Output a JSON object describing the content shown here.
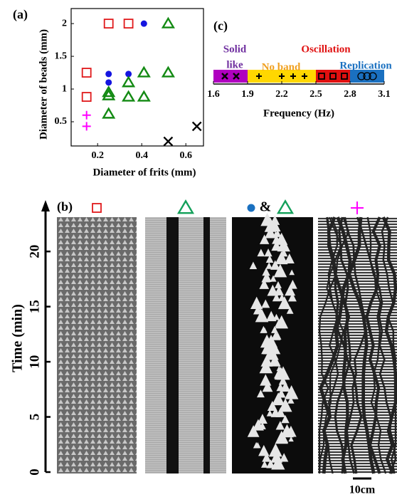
{
  "chart_data": [
    {
      "type": "scatter",
      "label": "(a)",
      "x_label": "Diameter of frits (mm)",
      "y_label": "Diameter of beads (mm)",
      "xlim": [
        0.08,
        0.68
      ],
      "ylim": [
        0.13,
        2.23
      ],
      "xticks": [
        0.2,
        0.4,
        0.6
      ],
      "yticks": [
        0.5,
        1,
        1.5,
        2
      ],
      "series": [
        {
          "marker": "square",
          "color": "#e0191b",
          "x": [
            0.25,
            0.34,
            0.15,
            0.15
          ],
          "values": [
            2,
            2,
            1.25,
            0.88
          ]
        },
        {
          "marker": "circle",
          "color": "#1515e0",
          "x": [
            0.41,
            0.25,
            0.34,
            0.25
          ],
          "values": [
            2,
            1.23,
            1.23,
            1.1
          ]
        },
        {
          "marker": "triangle",
          "color": "#138a13",
          "x": [
            0.52,
            0.41,
            0.52,
            0.34,
            0.25,
            0.25,
            0.34,
            0.41,
            0.25
          ],
          "values": [
            2,
            1.25,
            1.25,
            1.1,
            0.95,
            0.9,
            0.88,
            0.88,
            0.62
          ]
        },
        {
          "marker": "cross",
          "color": "#000000",
          "x": [
            0.52,
            0.65
          ],
          "values": [
            0.2,
            0.43
          ]
        },
        {
          "marker": "plus",
          "color": "#ff00ff",
          "x": [
            0.15,
            0.15
          ],
          "values": [
            0.6,
            0.43
          ]
        }
      ]
    },
    {
      "type": "band",
      "label": "(c)",
      "x_label": "Frequency (Hz)",
      "xlim": [
        1.6,
        3.1
      ],
      "xticks": [
        1.6,
        1.9,
        2.2,
        2.5,
        2.8,
        3.1
      ],
      "segments": [
        {
          "name": [
            "Solid",
            "like"
          ],
          "text_color": "#7030a0",
          "color": "#b000c0",
          "start": 1.6,
          "end": 1.9,
          "marker": "cross",
          "marker_x": [
            1.7,
            1.8
          ]
        },
        {
          "name": [
            "No band"
          ],
          "text_color": "#f0a020",
          "color": "#ffd700",
          "start": 1.9,
          "end": 2.5,
          "marker": "plus",
          "marker_x": [
            2.0,
            2.2,
            2.3,
            2.4
          ]
        },
        {
          "name": [
            "Oscillation"
          ],
          "text_color": "#e01010",
          "color": "#e01010",
          "start": 2.5,
          "end": 2.8,
          "marker": "square",
          "marker_x": [
            2.55,
            2.65,
            2.75
          ]
        },
        {
          "name": [
            "Replication"
          ],
          "text_color": "#1a70c0",
          "color": "#1a70c0",
          "start": 2.8,
          "end": 3.1,
          "marker": "circle",
          "marker_x": [
            2.9,
            2.95,
            3.0
          ]
        }
      ]
    },
    {
      "type": "image-strip",
      "label": "(b)",
      "y_label": "Time (min)",
      "ylim": [
        0,
        24.4
      ],
      "yticks": [
        0,
        5,
        10,
        15,
        20
      ],
      "scale_bar": "10cm",
      "panels": [
        {
          "markers": [
            "square"
          ],
          "colors": [
            "#e0191b"
          ]
        },
        {
          "markers": [
            "triangle"
          ],
          "colors": [
            "#13a05a"
          ]
        },
        {
          "markers": [
            "circle",
            "triangle"
          ],
          "colors": [
            "#1a70c0",
            "#13a05a"
          ],
          "joiner": "&"
        },
        {
          "markers": [
            "plus"
          ],
          "colors": [
            "#ff00ff"
          ]
        }
      ]
    }
  ]
}
